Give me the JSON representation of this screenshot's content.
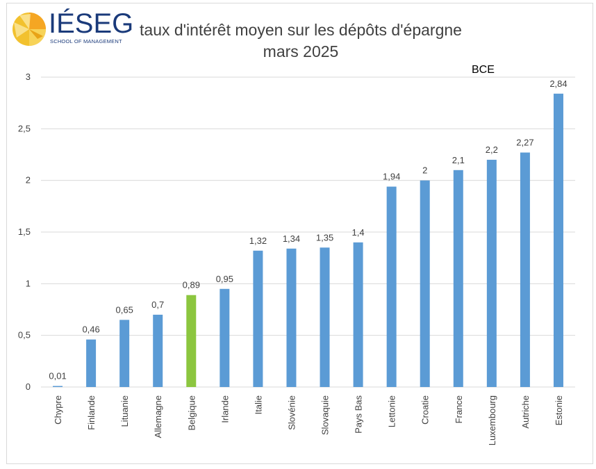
{
  "logo": {
    "word": "IÉSEG",
    "subtitle": "SCHOOL OF MANAGEMENT"
  },
  "chart_data": {
    "type": "bar",
    "title": "taux d'intérêt moyen sur les dépôts d'épargne",
    "subtitle": "mars 2025",
    "annotation": "BCE",
    "categories": [
      "Chypre",
      "Finlande",
      "Lituanie",
      "Allemagne",
      "Belgique",
      "Irlande",
      "Italie",
      "Slovénie",
      "Slovaquie",
      "Pays Bas",
      "Lettonie",
      "Croatie",
      "France",
      "Luxembourg",
      "Autriche",
      "Estonie"
    ],
    "values": [
      0.01,
      0.46,
      0.65,
      0.7,
      0.89,
      0.95,
      1.32,
      1.34,
      1.35,
      1.4,
      1.94,
      2,
      2.1,
      2.2,
      2.27,
      2.84
    ],
    "data_labels": [
      "0,01",
      "0,46",
      "0,65",
      "0,7",
      "0,89",
      "0,95",
      "1,32",
      "1,34",
      "1,35",
      "1,4",
      "1,94",
      "2",
      "2,1",
      "2,2",
      "2,27",
      "2,84"
    ],
    "highlight_category": "Belgique",
    "yticks": [
      0,
      0.5,
      1,
      1.5,
      2,
      2.5,
      3
    ],
    "ytick_labels": [
      "0",
      "0,5",
      "1",
      "1,5",
      "2",
      "2,5",
      "3"
    ],
    "ylim": [
      0,
      3
    ],
    "xlabel": "",
    "ylabel": "",
    "grid": true,
    "legend": "none",
    "colors": {
      "bar": "#5b9bd5",
      "highlight": "#8cc63f",
      "grid": "#d9d9d9",
      "text": "#404040"
    }
  }
}
